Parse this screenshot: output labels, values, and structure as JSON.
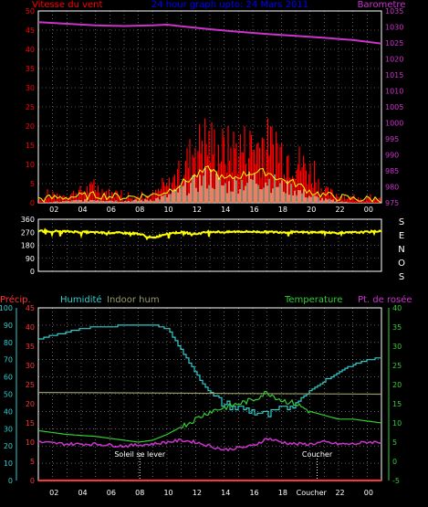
{
  "colors": {
    "bg": "#000000",
    "grid": "#ffffff",
    "wind": "#ff0000",
    "gust": "#ffff00",
    "avg_wind": "#ffffff",
    "baro": "#cc33cc",
    "dir": "#ffff00",
    "precip": "#ff3333",
    "humidity": "#33cccc",
    "indoor": "#999966",
    "temp": "#33cc33",
    "dew": "#cc33cc",
    "title": "#0000ff"
  },
  "header": {
    "title": "24 hour graph upto: 24 Mars 2011",
    "left_label": "Vitesse du vent",
    "right_label": "Barometre"
  },
  "panel2": {
    "right_letters": [
      "S",
      "E",
      "N",
      "O",
      "S"
    ]
  },
  "panel3": {
    "labels": {
      "precip": "Précip.",
      "humidity": "Humidité",
      "indoor": "Indoor hum",
      "temp": "Temperature",
      "dew": "Pt. de rosée"
    },
    "sunrise": "Soleil se lever",
    "sunset": "Coucher",
    "xlabels": [
      "02",
      "04",
      "06",
      "08",
      "10",
      "12",
      "14",
      "16",
      "18",
      "Coucher",
      "22",
      "00"
    ]
  },
  "chart_data": [
    {
      "type": "line",
      "title": "24 hour graph upto: 24 Mars 2011",
      "x_hours": [
        0,
        24
      ],
      "xlabels": [
        "02",
        "04",
        "06",
        "08",
        "10",
        "12",
        "14",
        "16",
        "18",
        "20",
        "22",
        "00"
      ],
      "left_axis": {
        "label": "Vitesse du vent",
        "ylim": [
          0,
          50
        ],
        "ticks": [
          0,
          5,
          10,
          15,
          20,
          25,
          30,
          35,
          40,
          45,
          50
        ]
      },
      "right_axis": {
        "label": "Barometre",
        "ylim": [
          975,
          1035
        ],
        "ticks": [
          975,
          980,
          985,
          990,
          995,
          1000,
          1005,
          1010,
          1015,
          1020,
          1025,
          1030,
          1035
        ]
      },
      "series": [
        {
          "name": "Barometre",
          "axis": "right",
          "x": [
            0,
            2,
            4,
            6,
            8,
            9,
            10,
            12,
            14,
            16,
            18,
            20,
            22,
            24
          ],
          "values": [
            1031.5,
            1031,
            1030.5,
            1030.3,
            1030.5,
            1030.7,
            1030.2,
            1029.3,
            1028.5,
            1027.8,
            1027.2,
            1026.6,
            1025.9,
            1024.8
          ]
        },
        {
          "name": "Vitesse du vent",
          "axis": "left",
          "x": [
            0,
            2,
            4,
            6,
            8,
            9,
            10,
            11,
            12,
            13,
            14,
            15,
            16,
            17,
            18,
            19,
            20,
            21,
            22,
            24
          ],
          "values": [
            1,
            2,
            4,
            1,
            2,
            4,
            8,
            14,
            15,
            13,
            14,
            14,
            15,
            13,
            11,
            8,
            3,
            2,
            1,
            1
          ]
        },
        {
          "axis": "left",
          "x": [
            0,
            2,
            4,
            6,
            8,
            9,
            10,
            11,
            12,
            13,
            14,
            15,
            16,
            17,
            18,
            19,
            20,
            21,
            22,
            24
          ],
          "values": [
            3,
            4,
            6,
            3,
            4,
            8,
            11,
            17,
            19,
            16,
            18,
            17,
            18,
            16,
            15,
            11,
            5,
            3,
            2,
            2
          ]
        },
        {
          "axis": "left",
          "x": [
            0,
            2,
            4,
            6,
            8,
            9,
            10,
            11,
            12,
            13,
            14,
            15,
            16,
            17,
            18,
            19,
            20,
            21,
            22,
            24
          ],
          "values": [
            0,
            0.5,
            1,
            0.5,
            1,
            2,
            4,
            6,
            8,
            5,
            6,
            7,
            7,
            5,
            4,
            2,
            1,
            0.5,
            0,
            0
          ]
        }
      ]
    },
    {
      "type": "line",
      "x_hours": [
        0,
        24
      ],
      "left_axis": {
        "ylim": [
          0,
          360
        ],
        "ticks": [
          0,
          90,
          180,
          270,
          360
        ]
      },
      "series": [
        {
          "x": [
            0,
            2,
            3,
            4,
            6,
            7,
            8,
            9,
            10,
            11,
            12,
            13,
            14,
            16,
            18,
            20,
            21,
            22,
            23,
            24
          ],
          "values": [
            280,
            275,
            272,
            268,
            265,
            260,
            230,
            262,
            270,
            258,
            275,
            270,
            275,
            272,
            270,
            270,
            265,
            268,
            272,
            280
          ]
        }
      ]
    },
    {
      "type": "line",
      "x_hours": [
        0,
        24
      ],
      "precip_axis": {
        "label": "Précip.",
        "ylim": [
          0,
          45
        ],
        "ticks": [
          0,
          5,
          10,
          15,
          20,
          25,
          30,
          35,
          40,
          45
        ]
      },
      "humidity_axis": {
        "label": "Humidité",
        "ylim": [
          0,
          100
        ],
        "ticks": [
          0,
          10,
          20,
          30,
          40,
          50,
          60,
          70,
          80,
          90,
          100
        ]
      },
      "temp_axis": {
        "label": "Temperature",
        "ylim": [
          -5,
          40
        ],
        "ticks": [
          -5,
          0,
          5,
          10,
          15,
          20,
          25,
          30,
          35,
          40
        ]
      },
      "series": [
        {
          "name": "Humidité",
          "axis": "humidity",
          "x": [
            0,
            1,
            2,
            3,
            4,
            5,
            6,
            7,
            8,
            9,
            10,
            11,
            12,
            13,
            14,
            15,
            16,
            17,
            18,
            19,
            20,
            21,
            22,
            23,
            24
          ],
          "values": [
            82,
            84,
            86,
            88,
            89,
            89,
            90,
            90,
            90,
            88,
            75,
            62,
            50,
            44,
            42,
            40,
            38,
            41,
            45,
            52,
            58,
            63,
            67,
            70,
            71
          ]
        },
        {
          "name": "Indoor hum",
          "axis": "humidity",
          "x": [
            0,
            24
          ],
          "values": [
            51,
            50
          ]
        },
        {
          "name": "Temperature",
          "axis": "temp",
          "x": [
            0,
            2,
            4,
            6,
            7,
            8,
            9,
            10,
            11,
            12,
            13,
            14,
            15,
            16,
            17,
            18,
            19,
            20,
            21,
            22,
            23,
            24
          ],
          "values": [
            8,
            7,
            6.5,
            5.5,
            5,
            5.5,
            7,
            9,
            11,
            13,
            14,
            15,
            16,
            18,
            16,
            15,
            13,
            12,
            11,
            11,
            10.5,
            10
          ]
        },
        {
          "name": "Pt. de rosée",
          "axis": "temp",
          "x": [
            0,
            2,
            4,
            6,
            8,
            9,
            10,
            11,
            12,
            13,
            14,
            15,
            16,
            17,
            18,
            19,
            20,
            21,
            22,
            23,
            24
          ],
          "values": [
            5,
            4.5,
            4.5,
            4,
            4.5,
            5,
            5.5,
            5,
            4,
            3,
            3.5,
            4,
            6,
            5,
            4.5,
            4.5,
            5,
            4.5,
            4.5,
            5,
            5
          ]
        },
        {
          "name": "Précip.",
          "axis": "precip",
          "x": [
            0,
            24
          ],
          "values": [
            0,
            0
          ]
        }
      ]
    }
  ]
}
